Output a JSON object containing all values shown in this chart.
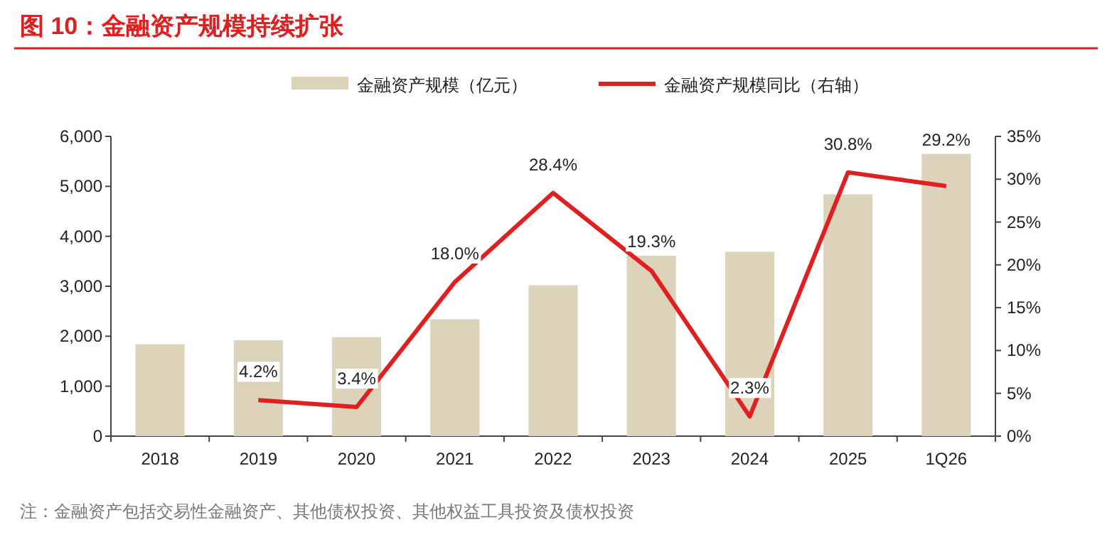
{
  "chart_data": {
    "type": "bar",
    "title": "图 10：金融资产规模持续扩张",
    "categories": [
      "2018",
      "2019",
      "2020",
      "2021",
      "2022",
      "2023",
      "2024",
      "2025",
      "1Q26"
    ],
    "series": [
      {
        "name": "金融资产规模（亿元）",
        "color": "#ddd3bb",
        "values": [
          1840,
          1920,
          1980,
          2340,
          3020,
          3610,
          3690,
          4840,
          5650
        ]
      },
      {
        "name": "金融资产规模同比（右轴）",
        "type": "line",
        "axis": "y2",
        "color": "#e02020",
        "values": [
          null,
          4.2,
          3.4,
          18.0,
          28.4,
          19.3,
          2.3,
          30.8,
          29.2
        ],
        "value_labels": [
          null,
          "4.2%",
          "3.4%",
          "18.0%",
          "28.4%",
          "19.3%",
          "2.3%",
          "30.8%",
          "29.2%"
        ]
      }
    ],
    "ylim": [
      0,
      6000
    ],
    "yticks": [
      {
        "value": 0,
        "label": "0"
      },
      {
        "value": 1000,
        "label": "1,000"
      },
      {
        "value": 2000,
        "label": "2,000"
      },
      {
        "value": 3000,
        "label": "3,000"
      },
      {
        "value": 4000,
        "label": "4,000"
      },
      {
        "value": 5000,
        "label": "5,000"
      },
      {
        "value": 6000,
        "label": "6,000"
      }
    ],
    "y2lim": [
      0,
      35
    ],
    "y2ticks": [
      {
        "value": 0,
        "label": "0%"
      },
      {
        "value": 5,
        "label": "5%"
      },
      {
        "value": 10,
        "label": "10%"
      },
      {
        "value": 15,
        "label": "15%"
      },
      {
        "value": 20,
        "label": "20%"
      },
      {
        "value": 25,
        "label": "25%"
      },
      {
        "value": 30,
        "label": "30%"
      },
      {
        "value": 35,
        "label": "35%"
      }
    ],
    "legend": "top",
    "annotations": [
      "注：金融资产包括交易性金融资产、其他债权投资、其他权益工具投资及债权投资"
    ]
  }
}
